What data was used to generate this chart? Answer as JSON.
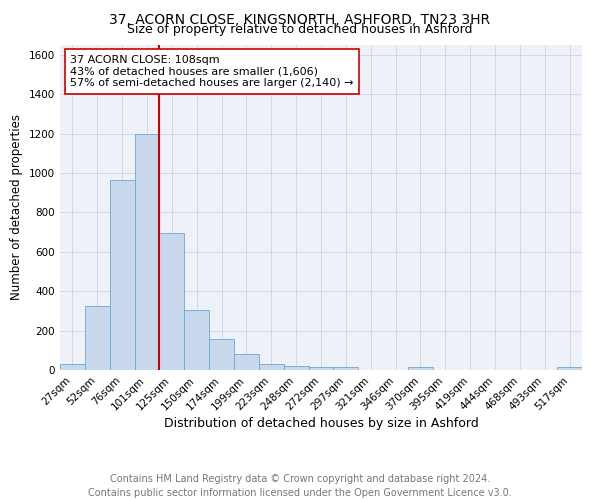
{
  "title1": "37, ACORN CLOSE, KINGSNORTH, ASHFORD, TN23 3HR",
  "title2": "Size of property relative to detached houses in Ashford",
  "xlabel": "Distribution of detached houses by size in Ashford",
  "ylabel": "Number of detached properties",
  "bar_heights": [
    30,
    325,
    965,
    1200,
    695,
    305,
    155,
    80,
    30,
    20,
    15,
    15,
    0,
    0,
    15,
    0,
    0,
    0,
    0,
    0,
    15
  ],
  "bin_labels": [
    "27sqm",
    "52sqm",
    "76sqm",
    "101sqm",
    "125sqm",
    "150sqm",
    "174sqm",
    "199sqm",
    "223sqm",
    "248sqm",
    "272sqm",
    "297sqm",
    "321sqm",
    "346sqm",
    "370sqm",
    "395sqm",
    "419sqm",
    "444sqm",
    "468sqm",
    "493sqm",
    "517sqm"
  ],
  "bar_color": "#c9d9ed",
  "bar_edge_color": "#6fa8d0",
  "bar_width": 1.0,
  "red_line_x": 3.5,
  "red_line_color": "#cc0000",
  "annotation_line1": "37 ACORN CLOSE: 108sqm",
  "annotation_line2": "43% of detached houses are smaller (1,606)",
  "annotation_line3": "57% of semi-detached houses are larger (2,140) →",
  "ylim": [
    0,
    1650
  ],
  "yticks": [
    0,
    200,
    400,
    600,
    800,
    1000,
    1200,
    1400,
    1600
  ],
  "bg_color": "#eef2f8",
  "grid_color": "#d0d8e8",
  "footer": "Contains HM Land Registry data © Crown copyright and database right 2024.\nContains public sector information licensed under the Open Government Licence v3.0.",
  "title1_fontsize": 10,
  "title2_fontsize": 9,
  "xlabel_fontsize": 9,
  "ylabel_fontsize": 8.5,
  "tick_fontsize": 7.5,
  "annotation_fontsize": 8,
  "footer_fontsize": 7
}
